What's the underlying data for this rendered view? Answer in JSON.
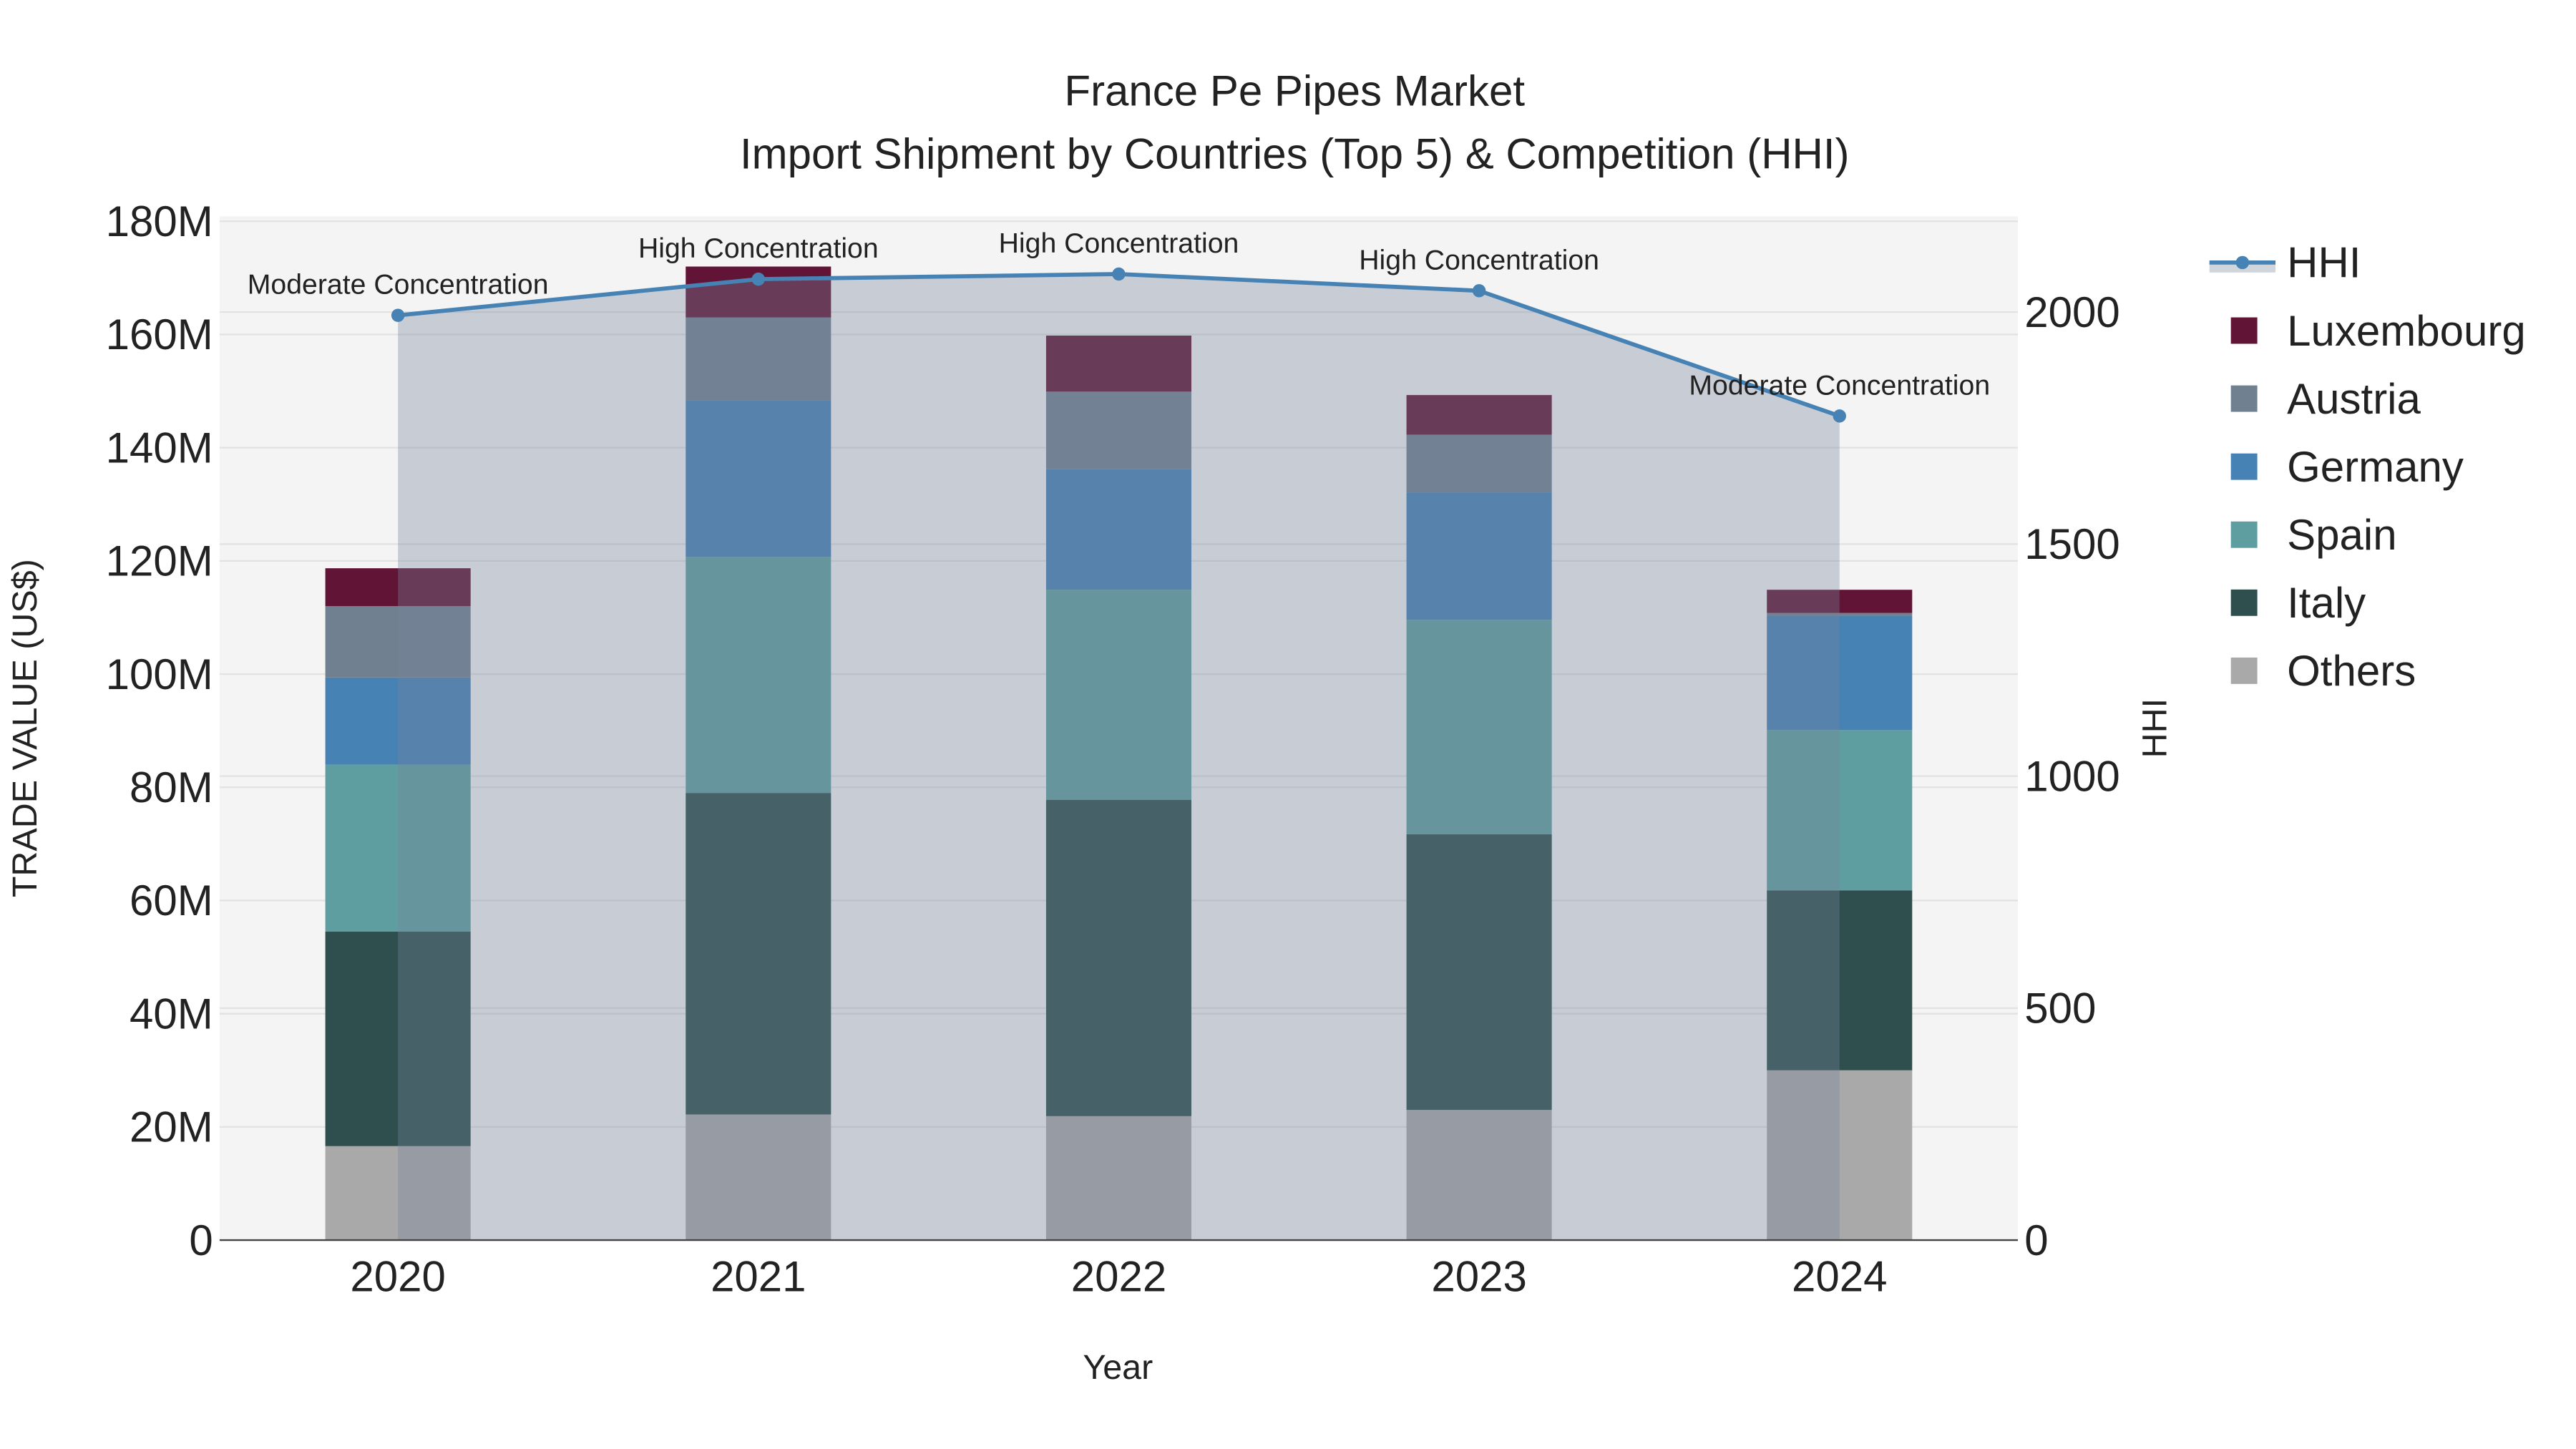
{
  "chart_data": {
    "type": "bar",
    "title": "France Pe Pipes Market",
    "subtitle": "Import Shipment by Countries (Top 5) & Competition (HHI)",
    "xlabel": "Year",
    "ylabel": "TRADE VALUE (US$)",
    "y2label": "HHI",
    "categories": [
      "2020",
      "2021",
      "2022",
      "2023",
      "2024"
    ],
    "ylim": [
      0,
      180000000
    ],
    "y_ticks": [
      0,
      20000000,
      40000000,
      60000000,
      80000000,
      100000000,
      120000000,
      140000000,
      160000000,
      180000000
    ],
    "y_tick_labels": [
      "0",
      "20M",
      "40M",
      "60M",
      "80M",
      "100M",
      "120M",
      "140M",
      "160M",
      "180M"
    ],
    "y2lim": [
      0,
      2200
    ],
    "y2_ticks": [
      0,
      500,
      1000,
      1500,
      2000
    ],
    "y2_tick_labels": [
      "0",
      "500",
      "1000",
      "1500",
      "2000"
    ],
    "stacked": true,
    "series": [
      {
        "name": "Others",
        "color": "#a9a9a9",
        "values": [
          16600000,
          22200000,
          21900000,
          23000000,
          30000000
        ]
      },
      {
        "name": "Italy",
        "color": "#2f4f4f",
        "values": [
          37900000,
          56800000,
          55900000,
          48700000,
          31800000
        ]
      },
      {
        "name": "Spain",
        "color": "#5f9ea0",
        "values": [
          29500000,
          41700000,
          37100000,
          37900000,
          28300000
        ]
      },
      {
        "name": "Germany",
        "color": "#4682b4",
        "values": [
          15400000,
          27700000,
          21300000,
          22500000,
          20200000
        ]
      },
      {
        "name": "Austria",
        "color": "#708090",
        "values": [
          12600000,
          14600000,
          13700000,
          10200000,
          500000
        ]
      },
      {
        "name": "Luxembourg",
        "color": "#621436",
        "values": [
          6700000,
          9000000,
          9900000,
          7000000,
          4100000
        ]
      }
    ],
    "line_series": {
      "name": "HHI",
      "color": "#4682b4",
      "values": [
        1993,
        2071,
        2082,
        2046,
        1776
      ],
      "annotations": [
        "Moderate Concentration",
        "High Concentration",
        "High Concentration",
        "High Concentration",
        "Moderate Concentration"
      ]
    },
    "legend_order": [
      "HHI",
      "Luxembourg",
      "Austria",
      "Germany",
      "Spain",
      "Italy",
      "Others"
    ],
    "legend_position": "right",
    "grid": true
  }
}
